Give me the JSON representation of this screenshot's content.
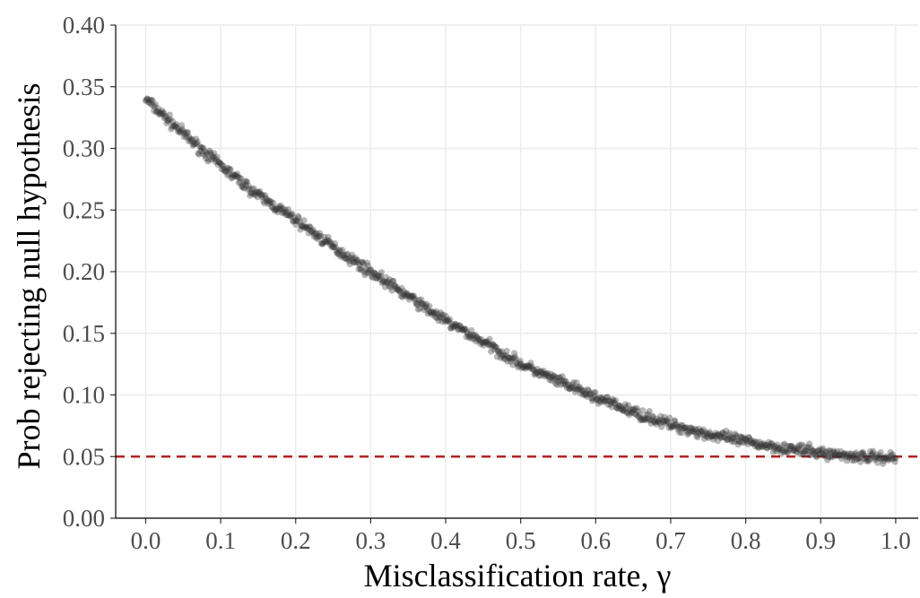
{
  "chart_data": {
    "type": "scatter",
    "xlabel": "Misclassification rate, γ",
    "ylabel": "Prob rejecting null hypothesis",
    "xlim": [
      -0.04,
      1.03
    ],
    "ylim": [
      0.0,
      0.4
    ],
    "x_ticks": [
      "0.0",
      "0.1",
      "0.2",
      "0.3",
      "0.4",
      "0.5",
      "0.6",
      "0.7",
      "0.8",
      "0.9",
      "1.0"
    ],
    "y_ticks": [
      "0.00",
      "0.05",
      "0.10",
      "0.15",
      "0.20",
      "0.25",
      "0.30",
      "0.35",
      "0.40"
    ],
    "grid": true,
    "reference_line": {
      "y": 0.05,
      "style": "dashed",
      "color": "#b22222"
    },
    "point_color": "#333333",
    "point_opacity": 0.35,
    "series": [
      {
        "x": [
          0.0,
          0.05,
          0.1,
          0.15,
          0.2,
          0.25,
          0.3,
          0.35,
          0.4,
          0.45,
          0.5,
          0.55,
          0.6,
          0.65,
          0.7,
          0.75,
          0.8,
          0.85,
          0.9,
          0.95,
          1.0
        ],
        "values": [
          0.34,
          0.312,
          0.286,
          0.262,
          0.242,
          0.22,
          0.2,
          0.18,
          0.16,
          0.143,
          0.125,
          0.111,
          0.098,
          0.086,
          0.076,
          0.068,
          0.062,
          0.057,
          0.053,
          0.05,
          0.049
        ]
      }
    ]
  }
}
